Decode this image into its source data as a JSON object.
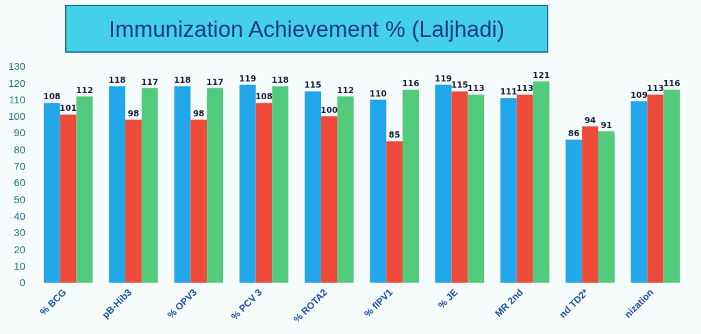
{
  "chart_data": {
    "type": "bar",
    "title": "Immunization Achievement % (Laljhadi)",
    "categories": [
      "% BCG",
      "pB-Hib3",
      "% OPV3",
      "% PCV 3",
      "% ROTA2",
      "% fIPV1",
      "% JE",
      "MR 2nd",
      "nd TD2*",
      "nization"
    ],
    "series": [
      {
        "color": "#22a7ea",
        "values": [
          108,
          118,
          118,
          119,
          115,
          110,
          119,
          111,
          86,
          109
        ]
      },
      {
        "color": "#ee4b3b",
        "values": [
          101,
          98,
          98,
          108,
          100,
          85,
          115,
          113,
          94,
          113
        ]
      },
      {
        "color": "#52cc7c",
        "values": [
          112,
          117,
          117,
          118,
          112,
          116,
          113,
          121,
          91,
          116
        ]
      }
    ],
    "ylim": [
      0,
      130
    ],
    "yticks": [
      0,
      10,
      20,
      30,
      40,
      50,
      60,
      70,
      80,
      90,
      100,
      110,
      120,
      130
    ],
    "data_labels": true
  }
}
